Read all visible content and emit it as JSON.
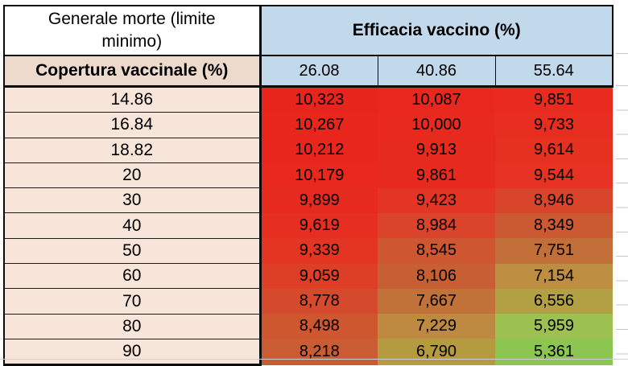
{
  "table": {
    "corner_title": "Generale morte (limite minimo)",
    "row_axis_title": "Copertura vaccinale (%)",
    "col_axis_title": "Efficacia vaccino (%)",
    "col_headers": [
      "26.08",
      "40.86",
      "55.64"
    ],
    "rows": [
      {
        "label": "14.86",
        "values": [
          "10,323",
          "10,087",
          "9,851"
        ],
        "colors": [
          "#E8251C",
          "#E8271D",
          "#E82B1E"
        ]
      },
      {
        "label": "16.84",
        "values": [
          "10,267",
          "10,000",
          "9,733"
        ],
        "colors": [
          "#E8261C",
          "#E8291D",
          "#E72D1F"
        ]
      },
      {
        "label": "18.82",
        "values": [
          "10,212",
          "9,913",
          "9,614"
        ],
        "colors": [
          "#E8261D",
          "#E72A1E",
          "#E63020"
        ]
      },
      {
        "label": "20",
        "values": [
          "10,179",
          "9,861",
          "9,544"
        ],
        "colors": [
          "#E8271D",
          "#E72A1E",
          "#E53222"
        ]
      },
      {
        "label": "30",
        "values": [
          "9,899",
          "9,423",
          "8,946"
        ],
        "colors": [
          "#E72A1E",
          "#E33523",
          "#D9452A"
        ]
      },
      {
        "label": "40",
        "values": [
          "9,619",
          "8,984",
          "8,349"
        ],
        "colors": [
          "#E62F20",
          "#DA442A",
          "#CB5932"
        ]
      },
      {
        "label": "50",
        "values": [
          "9,339",
          "8,545",
          "7,751"
        ],
        "colors": [
          "#E43522",
          "#CE5630",
          "#C16E38"
        ]
      },
      {
        "label": "60",
        "values": [
          "9,059",
          "8,106",
          "7,154"
        ],
        "colors": [
          "#DC3F26",
          "#C85F34",
          "#BD8E42"
        ]
      },
      {
        "label": "70",
        "values": [
          "8,778",
          "7,667",
          "6,556"
        ],
        "colors": [
          "#D54A2C",
          "#C07238",
          "#B2A044"
        ]
      },
      {
        "label": "80",
        "values": [
          "8,498",
          "7,229",
          "5,959"
        ],
        "colors": [
          "#CE5730",
          "#BE8A41",
          "#9CC150"
        ]
      },
      {
        "label": "90",
        "values": [
          "8,218",
          "6,790",
          "5,361"
        ],
        "colors": [
          "#CA5C33",
          "#B49B40",
          "#8CC651"
        ]
      }
    ]
  },
  "colors": {
    "header_blue": "#C2D8EB",
    "label_peach": "#F7E5DA",
    "axis_peach": "#EEDACC",
    "scale_red_max": "#E8251C",
    "scale_green_min": "#8CC651",
    "border_black": "#0B0B0B",
    "gridline_grey": "#C6C6C6"
  }
}
